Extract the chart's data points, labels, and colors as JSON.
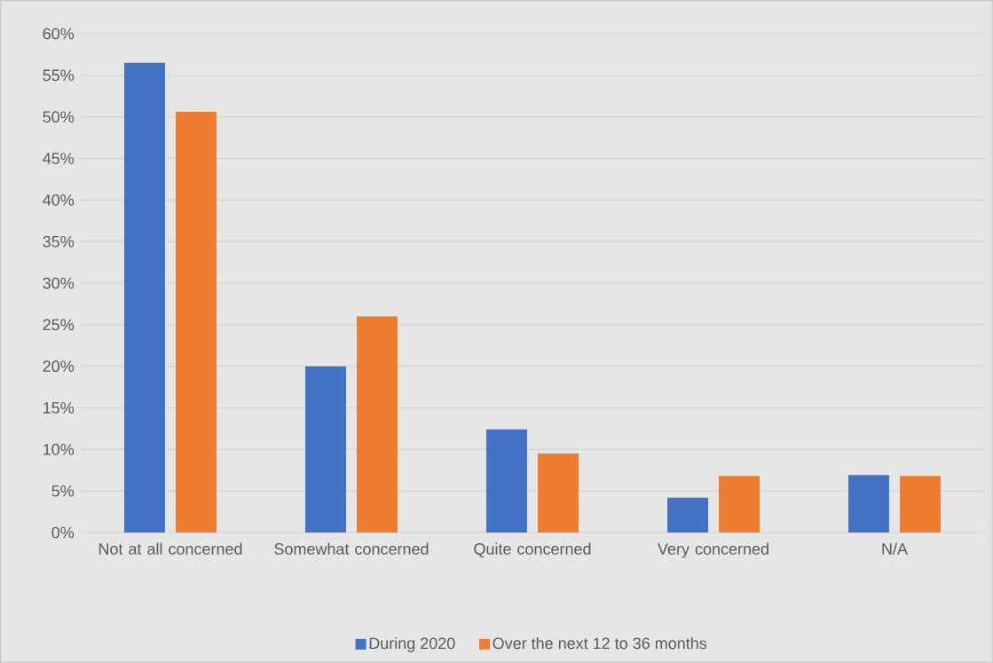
{
  "chart_data": {
    "type": "bar",
    "categories": [
      "Not at all concerned",
      "Somewhat concerned",
      "Quite concerned",
      "Very concerned",
      "N/A"
    ],
    "series": [
      {
        "name": "During 2020",
        "color": "#4472c4",
        "values": [
          56.5,
          20.0,
          12.4,
          4.2,
          6.9
        ]
      },
      {
        "name": "Over the next 12 to 36 months",
        "color": "#ed7d31",
        "values": [
          50.6,
          26.0,
          9.5,
          6.8,
          6.8
        ]
      }
    ],
    "ylim": [
      0,
      60
    ],
    "yticks": [
      {
        "value": 0,
        "label": "0%"
      },
      {
        "value": 5,
        "label": "5%"
      },
      {
        "value": 10,
        "label": "10%"
      },
      {
        "value": 15,
        "label": "15%"
      },
      {
        "value": 20,
        "label": "20%"
      },
      {
        "value": 25,
        "label": "25%"
      },
      {
        "value": 30,
        "label": "30%"
      },
      {
        "value": 35,
        "label": "35%"
      },
      {
        "value": 40,
        "label": "40%"
      },
      {
        "value": 45,
        "label": "45%"
      },
      {
        "value": 50,
        "label": "50%"
      },
      {
        "value": 55,
        "label": "55%"
      },
      {
        "value": 60,
        "label": "60%"
      }
    ],
    "grid": "y",
    "legend": "bottom"
  }
}
